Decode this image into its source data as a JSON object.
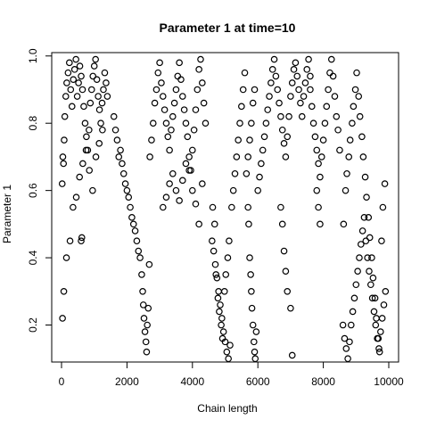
{
  "chart_data": {
    "type": "scatter",
    "title": "Parameter 1 at time=10",
    "xlabel": "Chain length",
    "ylabel": "Parameter 1",
    "xlim": [
      -300,
      10300
    ],
    "ylim": [
      0.09,
      1.01
    ],
    "xticks": [
      0,
      2000,
      4000,
      6000,
      8000,
      10000
    ],
    "xtick_labels": [
      "0",
      "2000",
      "4000",
      "6000",
      "8000",
      "10000"
    ],
    "yticks": [
      0.2,
      0.4,
      0.6,
      0.8,
      1.0
    ],
    "ytick_labels": [
      "0.2",
      "0.4",
      "0.6",
      "0.8",
      "1.0"
    ],
    "grid": false,
    "marker": "open-circle",
    "marker_color": "#000000",
    "series": [
      {
        "name": "",
        "x": [
          20,
          40,
          60,
          80,
          100,
          130,
          160,
          200,
          240,
          280,
          320,
          360,
          400,
          440,
          480,
          520,
          560,
          600,
          640,
          680,
          720,
          760,
          800,
          840,
          880,
          920,
          960,
          1000,
          1040,
          1080,
          1120,
          1160,
          1200,
          1240,
          1280,
          1320,
          1360,
          1400,
          30,
          70,
          150,
          260,
          350,
          450,
          550,
          650,
          750,
          850,
          950,
          1050,
          1150,
          1250,
          600,
          620,
          1600,
          1650,
          1700,
          1750,
          1800,
          1850,
          1900,
          1950,
          2000,
          2050,
          2100,
          2150,
          2200,
          2250,
          2300,
          2350,
          2400,
          2450,
          2480,
          2500,
          2520,
          2550,
          2580,
          2600,
          2620,
          2650,
          2680,
          2700,
          2750,
          2800,
          2850,
          2900,
          2950,
          3000,
          3050,
          3100,
          3150,
          3200,
          3250,
          3300,
          3350,
          3400,
          3450,
          3500,
          3550,
          3600,
          3650,
          3700,
          3750,
          3800,
          3850,
          3900,
          3950,
          4000,
          4050,
          4100,
          4150,
          4200,
          4250,
          4300,
          4350,
          4400,
          3100,
          3200,
          3300,
          3400,
          3500,
          3600,
          3700,
          3800,
          3900,
          4000,
          4100,
          4200,
          4300,
          4600,
          4650,
          4700,
          4750,
          4800,
          4850,
          4900,
          4950,
          5000,
          5050,
          5100,
          5150,
          4620,
          4680,
          4720,
          4780,
          4820,
          4880,
          4920,
          4980,
          5020,
          5080,
          5120,
          5200,
          5250,
          5300,
          5350,
          5400,
          5450,
          5500,
          5550,
          5600,
          5700,
          5720,
          5750,
          5780,
          5800,
          5820,
          5850,
          5880,
          5900,
          5920,
          5950,
          5650,
          5700,
          5750,
          5800,
          5850,
          5900,
          6000,
          6050,
          6100,
          6150,
          6200,
          6250,
          6300,
          6350,
          6400,
          6450,
          6500,
          6550,
          6600,
          6650,
          6700,
          6750,
          6800,
          6850,
          6900,
          6950,
          7000,
          7050,
          7100,
          7150,
          7200,
          7250,
          7300,
          7350,
          7400,
          7450,
          7500,
          7550,
          7600,
          6700,
          6750,
          6800,
          6850,
          6900,
          7000,
          7050,
          7600,
          7650,
          7700,
          7750,
          7800,
          7850,
          7900,
          7950,
          8000,
          8050,
          8100,
          8150,
          8200,
          8250,
          8300,
          8350,
          8400,
          8450,
          8500,
          7800,
          7850,
          7900,
          8600,
          8650,
          8700,
          8750,
          8800,
          8850,
          8900,
          8950,
          9000,
          9050,
          9100,
          9150,
          9200,
          9250,
          9300,
          9350,
          9400,
          9450,
          9500,
          9550,
          9600,
          9650,
          9700,
          9750,
          9800,
          9850,
          9900,
          8620,
          8680,
          8720,
          8780,
          8820,
          8880,
          8920,
          8980,
          9020,
          9080,
          9120,
          9180,
          9220,
          9280,
          9320,
          9380,
          9420,
          9480,
          9520,
          9580,
          9620,
          9680,
          9720,
          9780,
          9820,
          9880
        ],
        "y": [
          0.62,
          0.7,
          0.68,
          0.75,
          0.82,
          0.88,
          0.92,
          0.95,
          0.98,
          0.9,
          0.85,
          0.93,
          0.96,
          0.99,
          0.88,
          0.92,
          0.97,
          0.94,
          0.9,
          0.85,
          0.8,
          0.76,
          0.72,
          0.78,
          0.86,
          0.9,
          0.94,
          0.97,
          0.99,
          0.93,
          0.88,
          0.84,
          0.8,
          0.86,
          0.9,
          0.95,
          0.92,
          0.88,
          0.22,
          0.3,
          0.4,
          0.45,
          0.55,
          0.58,
          0.64,
          0.68,
          0.72,
          0.66,
          0.6,
          0.7,
          0.74,
          0.78,
          0.45,
          0.46,
          0.82,
          0.78,
          0.75,
          0.7,
          0.72,
          0.68,
          0.65,
          0.62,
          0.6,
          0.58,
          0.55,
          0.52,
          0.5,
          0.48,
          0.45,
          0.42,
          0.4,
          0.35,
          0.3,
          0.26,
          0.22,
          0.18,
          0.15,
          0.12,
          0.2,
          0.25,
          0.38,
          0.7,
          0.75,
          0.8,
          0.86,
          0.9,
          0.95,
          0.98,
          0.92,
          0.88,
          0.84,
          0.8,
          0.76,
          0.72,
          0.78,
          0.82,
          0.86,
          0.9,
          0.94,
          0.98,
          0.93,
          0.88,
          0.84,
          0.8,
          0.76,
          0.7,
          0.66,
          0.72,
          0.78,
          0.84,
          0.9,
          0.96,
          0.99,
          0.92,
          0.86,
          0.8,
          0.55,
          0.58,
          0.62,
          0.65,
          0.6,
          0.57,
          0.63,
          0.68,
          0.66,
          0.6,
          0.56,
          0.5,
          0.62,
          0.45,
          0.42,
          0.38,
          0.34,
          0.3,
          0.26,
          0.22,
          0.18,
          0.15,
          0.12,
          0.1,
          0.14,
          0.55,
          0.5,
          0.35,
          0.28,
          0.24,
          0.2,
          0.16,
          0.3,
          0.35,
          0.4,
          0.45,
          0.55,
          0.6,
          0.65,
          0.7,
          0.75,
          0.8,
          0.85,
          0.9,
          0.95,
          0.55,
          0.5,
          0.4,
          0.35,
          0.3,
          0.25,
          0.2,
          0.15,
          0.12,
          0.1,
          0.18,
          0.65,
          0.7,
          0.75,
          0.8,
          0.86,
          0.9,
          0.6,
          0.64,
          0.68,
          0.72,
          0.76,
          0.8,
          0.84,
          0.88,
          0.92,
          0.96,
          0.99,
          0.94,
          0.9,
          0.86,
          0.82,
          0.78,
          0.74,
          0.7,
          0.76,
          0.82,
          0.88,
          0.92,
          0.96,
          0.98,
          0.94,
          0.9,
          0.86,
          0.82,
          0.88,
          0.92,
          0.96,
          0.99,
          0.94,
          0.55,
          0.5,
          0.42,
          0.36,
          0.3,
          0.25,
          0.11,
          0.9,
          0.85,
          0.8,
          0.76,
          0.72,
          0.68,
          0.64,
          0.7,
          0.75,
          0.8,
          0.85,
          0.9,
          0.95,
          0.99,
          0.94,
          0.88,
          0.82,
          0.78,
          0.72,
          0.6,
          0.55,
          0.5,
          0.2,
          0.16,
          0.13,
          0.1,
          0.15,
          0.2,
          0.24,
          0.28,
          0.32,
          0.36,
          0.4,
          0.44,
          0.48,
          0.52,
          0.45,
          0.4,
          0.36,
          0.32,
          0.28,
          0.24,
          0.2,
          0.16,
          0.13,
          0.18,
          0.22,
          0.26,
          0.3,
          0.5,
          0.6,
          0.65,
          0.7,
          0.75,
          0.8,
          0.85,
          0.9,
          0.95,
          0.88,
          0.82,
          0.76,
          0.7,
          0.64,
          0.58,
          0.52,
          0.46,
          0.4,
          0.34,
          0.28,
          0.22,
          0.16,
          0.12,
          0.45,
          0.55,
          0.62
        ]
      }
    ]
  }
}
